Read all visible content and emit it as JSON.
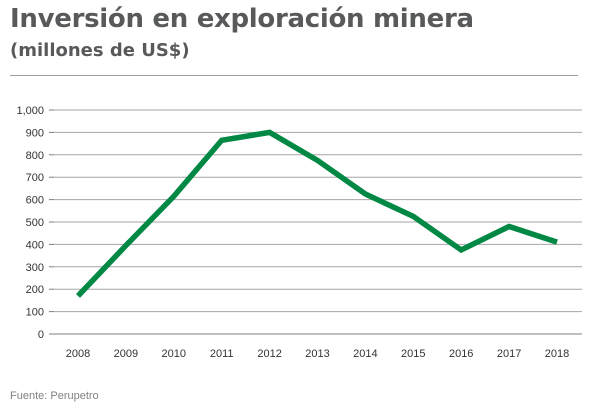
{
  "chart_data": {
    "type": "line",
    "title": "Inversión en exploración minera",
    "subtitle": "(millones de US$)",
    "xlabel": "",
    "ylabel": "",
    "x": [
      "2008",
      "2009",
      "2010",
      "2011",
      "2012",
      "2013",
      "2014",
      "2015",
      "2016",
      "2017",
      "2018"
    ],
    "series": [
      {
        "values": [
          170,
          395,
          615,
          865,
          900,
          775,
          625,
          525,
          375,
          480,
          410
        ],
        "color": "#008844"
      }
    ],
    "ylim": [
      0,
      1000
    ],
    "yticks": [
      0,
      100,
      200,
      300,
      400,
      500,
      600,
      700,
      800,
      900,
      1000
    ],
    "ytick_labels": [
      "0",
      "100",
      "200",
      "300",
      "400",
      "500",
      "600",
      "700",
      "800",
      "900",
      "1,000"
    ],
    "grid": true,
    "legend": "none",
    "source": "Fuente: Perupetro"
  }
}
